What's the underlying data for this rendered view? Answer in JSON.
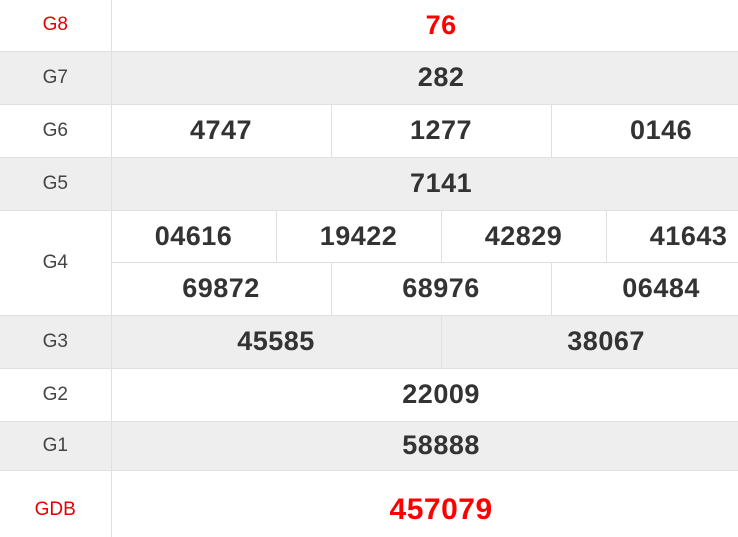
{
  "colors": {
    "accent-red": "#fe0000",
    "label-red": "#e60000",
    "row-alt-bg": "#eeeeee",
    "border-color": "#e0e0e0",
    "text-color": "#333333",
    "label-color": "#444444"
  },
  "prizes": {
    "g8": {
      "label": "G8",
      "value": "76"
    },
    "g7": {
      "label": "G7",
      "value": "282"
    },
    "g6": {
      "label": "G6",
      "values": [
        "4747",
        "1277",
        "0146"
      ]
    },
    "g5": {
      "label": "G5",
      "value": "7141"
    },
    "g4": {
      "label": "G4",
      "row1": [
        "04616",
        "19422",
        "42829",
        "41643"
      ],
      "row2": [
        "69872",
        "68976",
        "06484"
      ]
    },
    "g3": {
      "label": "G3",
      "values": [
        "45585",
        "38067"
      ]
    },
    "g2": {
      "label": "G2",
      "value": "22009"
    },
    "g1": {
      "label": "G1",
      "value": "58888"
    },
    "gdb": {
      "label": "GDB",
      "value": "457079"
    }
  }
}
